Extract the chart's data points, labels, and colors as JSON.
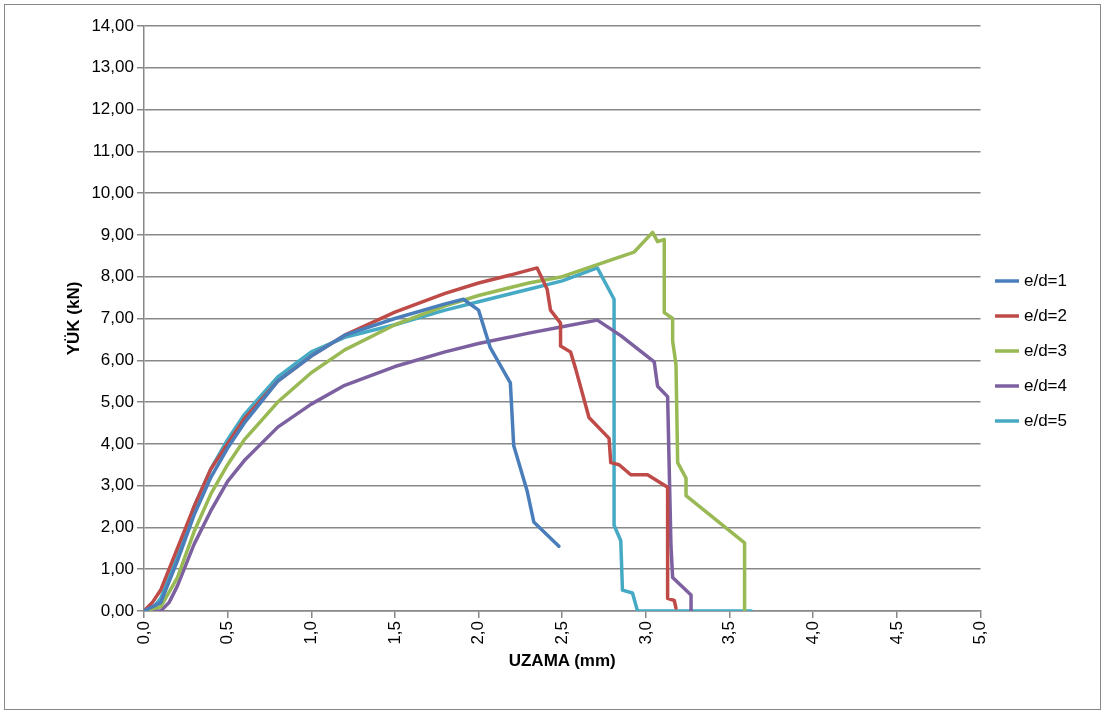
{
  "chart_data": {
    "type": "line",
    "xlabel": "UZAMA (mm)",
    "ylabel": "YÜK (kN)",
    "xlim": [
      0,
      5
    ],
    "xticks": [
      {
        "value": 0,
        "label": "0,0"
      },
      {
        "value": 0.5,
        "label": "0,5"
      },
      {
        "value": 1,
        "label": "1,0"
      },
      {
        "value": 1.5,
        "label": "1,5"
      },
      {
        "value": 2,
        "label": "2,0"
      },
      {
        "value": 2.5,
        "label": "2,5"
      },
      {
        "value": 3,
        "label": "3,0"
      },
      {
        "value": 3.5,
        "label": "3,5"
      },
      {
        "value": 4,
        "label": "4,0"
      },
      {
        "value": 4.5,
        "label": "4,5"
      },
      {
        "value": 5,
        "label": "5,0"
      }
    ],
    "ylim": [
      0,
      14
    ],
    "yticks": [
      {
        "value": 0,
        "label": "0,00"
      },
      {
        "value": 1,
        "label": "1,00"
      },
      {
        "value": 2,
        "label": "2,00"
      },
      {
        "value": 3,
        "label": "3,00"
      },
      {
        "value": 4,
        "label": "4,00"
      },
      {
        "value": 5,
        "label": "5,00"
      },
      {
        "value": 6,
        "label": "6,00"
      },
      {
        "value": 7,
        "label": "7,00"
      },
      {
        "value": 8,
        "label": "8,00"
      },
      {
        "value": 9,
        "label": "9,00"
      },
      {
        "value": 10,
        "label": "10,00"
      },
      {
        "value": 11,
        "label": "11,00"
      },
      {
        "value": 12,
        "label": "12,00"
      },
      {
        "value": 13,
        "label": "13,00"
      },
      {
        "value": 14,
        "label": "14,00"
      }
    ],
    "grid": "y",
    "legend": "right",
    "marker": "none",
    "line_style": "solid",
    "series": [
      {
        "name": "e/d=1",
        "color": "#4a7ebb",
        "x": [
          0,
          0.1,
          0.2,
          0.3,
          0.4,
          0.5,
          0.6,
          0.8,
          1.0,
          1.2,
          1.5,
          1.8,
          1.91,
          2.0,
          2.07,
          2.19,
          2.21,
          2.29,
          2.33,
          2.48
        ],
        "values": [
          0,
          0.2,
          1.2,
          2.3,
          3.2,
          3.9,
          4.5,
          5.5,
          6.1,
          6.6,
          7.0,
          7.35,
          7.46,
          7.2,
          6.3,
          5.46,
          3.96,
          2.88,
          2.13,
          1.55
        ]
      },
      {
        "name": "e/d=2",
        "color": "#be4b48",
        "x": [
          0,
          0.05,
          0.1,
          0.2,
          0.3,
          0.4,
          0.5,
          0.6,
          0.8,
          1.0,
          1.2,
          1.5,
          1.8,
          2.0,
          2.2,
          2.35,
          2.41,
          2.43,
          2.49,
          2.49,
          2.55,
          2.58,
          2.66,
          2.78,
          2.79,
          2.84,
          2.91,
          3.01,
          3.13,
          3.13,
          3.17,
          3.18
        ],
        "values": [
          0,
          0.2,
          0.5,
          1.5,
          2.5,
          3.4,
          4.0,
          4.6,
          5.5,
          6.1,
          6.6,
          7.15,
          7.6,
          7.85,
          8.05,
          8.21,
          7.7,
          7.2,
          6.89,
          6.34,
          6.2,
          5.8,
          4.63,
          4.13,
          3.55,
          3.5,
          3.26,
          3.26,
          2.96,
          0.3,
          0.25,
          0.07
        ]
      },
      {
        "name": "e/d=3",
        "color": "#98b954",
        "x": [
          0,
          0.1,
          0.2,
          0.3,
          0.4,
          0.5,
          0.6,
          0.8,
          1.0,
          1.2,
          1.5,
          1.8,
          2.0,
          2.3,
          2.5,
          2.93,
          3.04,
          3.07,
          3.11,
          3.11,
          3.16,
          3.16,
          3.18,
          3.19,
          3.24,
          3.24,
          3.59,
          3.59
        ],
        "values": [
          0,
          0.1,
          0.8,
          1.9,
          2.8,
          3.5,
          4.1,
          5.0,
          5.7,
          6.25,
          6.85,
          7.3,
          7.55,
          7.85,
          8.0,
          8.59,
          9.06,
          8.84,
          8.89,
          7.14,
          7.0,
          6.46,
          5.9,
          3.55,
          3.18,
          2.76,
          1.63,
          0
        ]
      },
      {
        "name": "e/d=4",
        "color": "#7d60a0",
        "x": [
          0,
          0.1,
          0.15,
          0.2,
          0.3,
          0.4,
          0.5,
          0.6,
          0.8,
          1.0,
          1.2,
          1.5,
          1.8,
          2.0,
          2.3,
          2.5,
          2.71,
          2.85,
          3.05,
          3.07,
          3.13,
          3.15,
          3.16,
          3.27,
          3.27
        ],
        "values": [
          0,
          0,
          0.2,
          0.6,
          1.6,
          2.4,
          3.1,
          3.6,
          4.4,
          4.95,
          5.4,
          5.85,
          6.2,
          6.4,
          6.65,
          6.8,
          6.96,
          6.59,
          5.96,
          5.38,
          5.13,
          1.55,
          0.8,
          0.38,
          0
        ]
      },
      {
        "name": "e/d=5",
        "color": "#46aac5",
        "x": [
          0,
          0.05,
          0.1,
          0.2,
          0.3,
          0.4,
          0.5,
          0.6,
          0.8,
          1.0,
          1.2,
          1.5,
          1.8,
          2.0,
          2.3,
          2.5,
          2.71,
          2.81,
          2.81,
          2.85,
          2.86,
          2.92,
          2.95,
          3.63
        ],
        "values": [
          0,
          0.05,
          0.3,
          1.3,
          2.5,
          3.4,
          4.1,
          4.7,
          5.6,
          6.2,
          6.55,
          6.85,
          7.2,
          7.4,
          7.7,
          7.9,
          8.21,
          7.46,
          2.05,
          1.68,
          0.5,
          0.43,
          0,
          0
        ]
      }
    ]
  }
}
